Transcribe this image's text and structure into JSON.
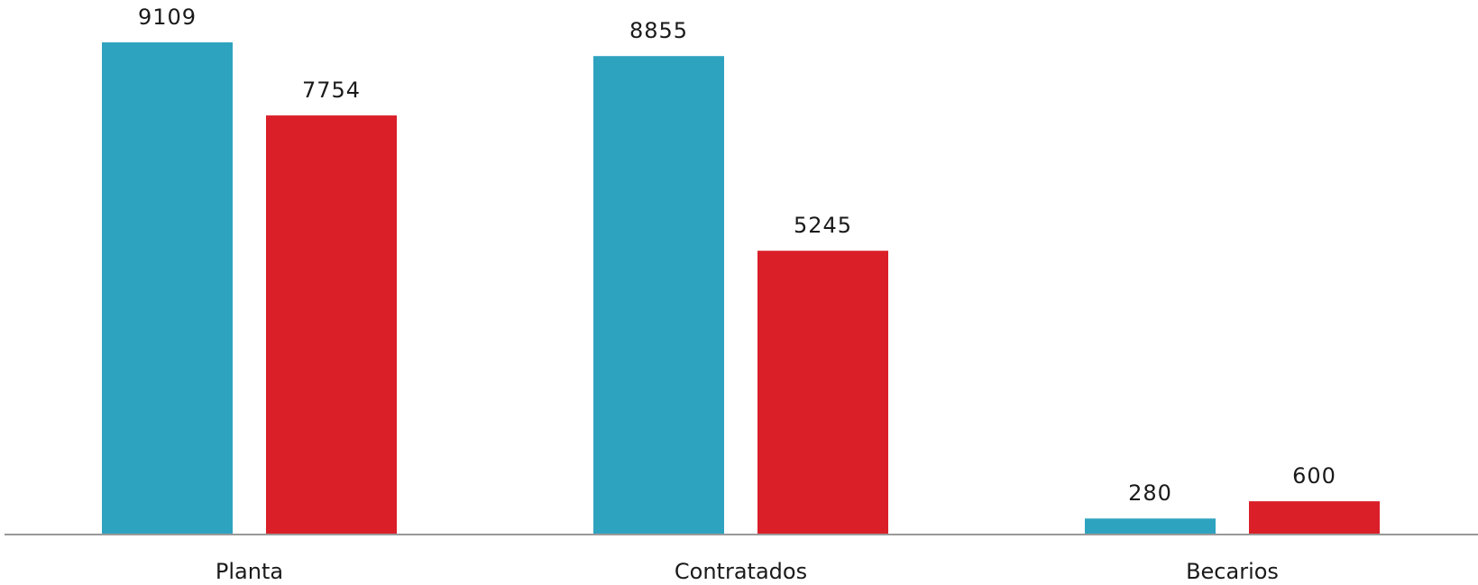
{
  "chart_data": {
    "type": "bar",
    "categories": [
      "Planta",
      "Contratados",
      "Becarios"
    ],
    "series": [
      {
        "values": [
          9109,
          8855,
          280
        ],
        "color": "#2ea3bf"
      },
      {
        "values": [
          7754,
          5245,
          600
        ],
        "color": "#da1f29"
      }
    ],
    "data_labels": [
      [
        "9109",
        "8855",
        "280"
      ],
      [
        "7754",
        "5245",
        "600"
      ]
    ],
    "ylim": [
      0,
      9109
    ],
    "grid": false,
    "legend": "none",
    "axis_color": "#999999"
  }
}
